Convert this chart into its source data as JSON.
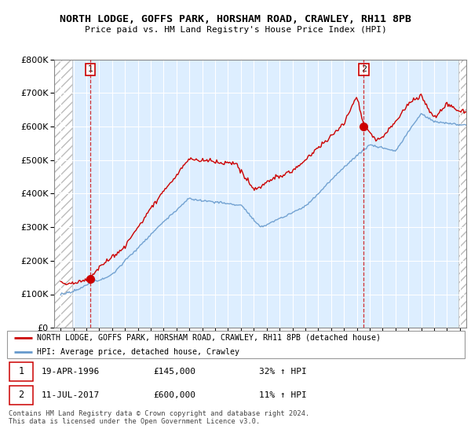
{
  "title_line1": "NORTH LODGE, GOFFS PARK, HORSHAM ROAD, CRAWLEY, RH11 8PB",
  "title_line2": "Price paid vs. HM Land Registry's House Price Index (HPI)",
  "ylim": [
    0,
    800000
  ],
  "yticks": [
    0,
    100000,
    200000,
    300000,
    400000,
    500000,
    600000,
    700000,
    800000
  ],
  "ytick_labels": [
    "£0",
    "£100K",
    "£200K",
    "£300K",
    "£400K",
    "£500K",
    "£600K",
    "£700K",
    "£800K"
  ],
  "x_start_year": 1994,
  "x_end_year": 2025,
  "hpi_color": "#6699cc",
  "price_color": "#cc0000",
  "bg_color": "#ddeeff",
  "sale1_year": 1996.3,
  "sale1_price": 145000,
  "sale2_year": 2017.53,
  "sale2_price": 600000,
  "legend_line1": "NORTH LODGE, GOFFS PARK, HORSHAM ROAD, CRAWLEY, RH11 8PB (detached house)",
  "legend_line2": "HPI: Average price, detached house, Crawley",
  "table_row1_date": "19-APR-1996",
  "table_row1_price": "£145,000",
  "table_row1_hpi": "32% ↑ HPI",
  "table_row2_date": "11-JUL-2017",
  "table_row2_price": "£600,000",
  "table_row2_hpi": "11% ↑ HPI",
  "footer": "Contains HM Land Registry data © Crown copyright and database right 2024.\nThis data is licensed under the Open Government Licence v3.0."
}
